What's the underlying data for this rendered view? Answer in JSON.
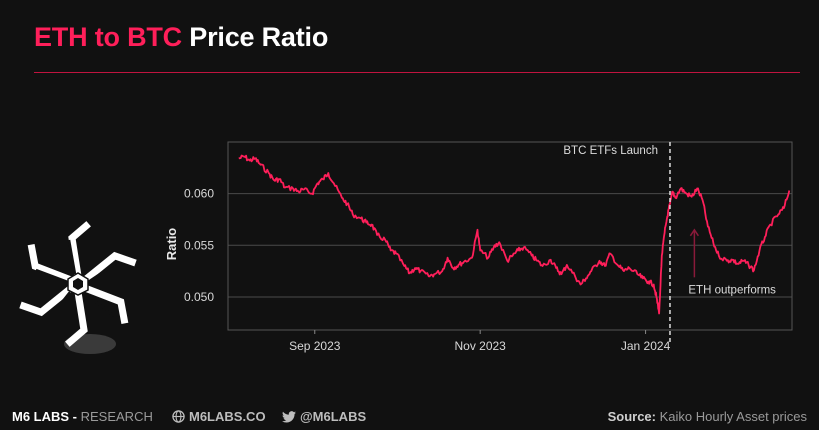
{
  "header": {
    "title_accent": "ETH to BTC",
    "title_rest": " Price Ratio"
  },
  "colors": {
    "accent": "#ff1f5a",
    "line": "#ff1f5a",
    "background": "#111111",
    "grid": "#4a4a4a",
    "annotation_line": "#dddddd",
    "arrow": "#8a1a3a"
  },
  "chart_data": {
    "type": "line",
    "title": "",
    "xlabel": "",
    "ylabel": "Ratio",
    "ylim": [
      0.0468,
      0.065
    ],
    "yticks": [
      0.05,
      0.055,
      0.06
    ],
    "ytick_labels": [
      "0.050",
      "0.055",
      "0.060"
    ],
    "xlim": [
      "2023-07-31",
      "2024-02-24"
    ],
    "xticks": [
      "2023-09-01",
      "2023-11-01",
      "2024-01-01"
    ],
    "xtick_labels": [
      "Sep 2023",
      "Nov 2023",
      "Jan 2024"
    ],
    "grid": "horizontal",
    "series": [
      {
        "x": [
          "2023-08-04",
          "2023-08-06",
          "2023-08-08",
          "2023-08-10",
          "2023-08-12",
          "2023-08-15",
          "2023-08-17",
          "2023-08-19",
          "2023-08-21",
          "2023-08-24",
          "2023-08-26",
          "2023-08-28",
          "2023-08-31",
          "2023-09-02",
          "2023-09-04",
          "2023-09-06",
          "2023-09-08",
          "2023-09-11",
          "2023-09-13",
          "2023-09-15",
          "2023-09-18",
          "2023-09-20",
          "2023-09-22",
          "2023-09-24",
          "2023-09-27",
          "2023-09-29",
          "2023-10-01",
          "2023-10-04",
          "2023-10-06",
          "2023-10-08",
          "2023-10-10",
          "2023-10-13",
          "2023-10-15",
          "2023-10-18",
          "2023-10-20",
          "2023-10-22",
          "2023-10-24",
          "2023-10-26",
          "2023-10-29",
          "2023-10-31",
          "2023-11-01",
          "2023-11-04",
          "2023-11-06",
          "2023-11-08",
          "2023-11-11",
          "2023-11-13",
          "2023-11-15",
          "2023-11-17",
          "2023-11-20",
          "2023-11-22",
          "2023-11-24",
          "2023-11-27",
          "2023-11-29",
          "2023-12-01",
          "2023-12-03",
          "2023-12-06",
          "2023-12-08",
          "2023-12-10",
          "2023-12-12",
          "2023-12-15",
          "2023-12-17",
          "2023-12-19",
          "2023-12-22",
          "2023-12-24",
          "2023-12-26",
          "2023-12-29",
          "2023-12-31",
          "2024-01-02",
          "2024-01-04",
          "2024-01-05",
          "2024-01-06",
          "2024-01-07",
          "2024-01-08",
          "2024-01-09",
          "2024-01-10",
          "2024-01-11",
          "2024-01-12",
          "2024-01-14",
          "2024-01-16",
          "2024-01-18",
          "2024-01-20",
          "2024-01-22",
          "2024-01-24",
          "2024-01-26",
          "2024-01-28",
          "2024-01-31",
          "2024-02-02",
          "2024-02-04",
          "2024-02-06",
          "2024-02-08",
          "2024-02-10",
          "2024-02-12",
          "2024-02-14",
          "2024-02-16",
          "2024-02-19",
          "2024-02-21",
          "2024-02-23"
        ],
        "y": [
          0.0634,
          0.0636,
          0.0632,
          0.0634,
          0.0628,
          0.062,
          0.0613,
          0.0614,
          0.0606,
          0.0605,
          0.0602,
          0.0604,
          0.06,
          0.061,
          0.0614,
          0.062,
          0.061,
          0.0596,
          0.059,
          0.058,
          0.0576,
          0.0572,
          0.057,
          0.056,
          0.0555,
          0.0545,
          0.0542,
          0.053,
          0.0523,
          0.0528,
          0.0525,
          0.052,
          0.0522,
          0.0525,
          0.0538,
          0.0528,
          0.0531,
          0.0534,
          0.0538,
          0.0565,
          0.0545,
          0.0538,
          0.0548,
          0.0553,
          0.0535,
          0.054,
          0.0545,
          0.0548,
          0.054,
          0.0535,
          0.053,
          0.0536,
          0.0528,
          0.0522,
          0.0531,
          0.052,
          0.0512,
          0.0518,
          0.0525,
          0.0535,
          0.053,
          0.0542,
          0.053,
          0.0525,
          0.0528,
          0.0522,
          0.0518,
          0.0515,
          0.0512,
          0.05,
          0.0484,
          0.054,
          0.0562,
          0.0578,
          0.059,
          0.0602,
          0.0596,
          0.0605,
          0.06,
          0.0597,
          0.0605,
          0.0594,
          0.0568,
          0.0552,
          0.054,
          0.0535,
          0.0536,
          0.0532,
          0.0535,
          0.0531,
          0.0526,
          0.0545,
          0.0558,
          0.057,
          0.058,
          0.0586,
          0.0603
        ]
      }
    ],
    "annotations": [
      {
        "x": "2024-01-10",
        "text": "BTC ETFs Launch",
        "kind": "vertical-dashed-line"
      },
      {
        "x": "2024-01-19",
        "y_from": 0.0519,
        "y_to": 0.0565,
        "text": "ETH outperforms",
        "kind": "arrow"
      }
    ]
  },
  "footer": {
    "brand": "M6 LABS -",
    "brand_sub": " RESEARCH",
    "site_icon": "globe-icon",
    "site": "M6LABS.CO",
    "twitter_icon": "twitter-bird-icon",
    "twitter": "@M6LABS",
    "source_label": "Source:",
    "source_text": " Kaiko Hourly Asset prices"
  },
  "logo_icon": "m6-starburst-logo"
}
